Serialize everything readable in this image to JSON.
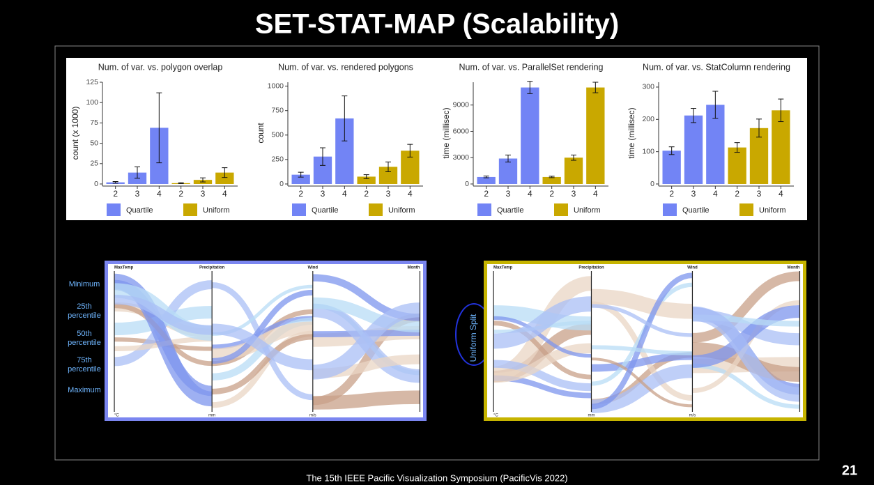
{
  "slide": {
    "title": "SET-STAT-MAP (Scalability)",
    "footer": "The 15th IEEE Pacific Visualization Symposium (PacificVis 2022)",
    "page_number": "21",
    "row_labels": [
      "Minimum",
      "25th percentile",
      "50th percentile",
      "75th percentile",
      "Maximum"
    ],
    "annotation": "Uniform Split",
    "parallel_sets": {
      "axes": [
        "MaxTemp",
        "Precipitation",
        "Wind",
        "Month"
      ],
      "units": [
        "°C",
        "mm",
        "m/s"
      ]
    }
  },
  "chart_data": [
    {
      "type": "bar",
      "title": "Num. of var. vs. polygon overlap",
      "y_label": "count (x 1000)",
      "categories": [
        "2",
        "3",
        "4"
      ],
      "ylim": [
        0,
        125
      ],
      "yticks": [
        0,
        25,
        50,
        75,
        100,
        125
      ],
      "series": [
        {
          "name": "Quartile",
          "color": "#7284f5",
          "values": [
            2,
            14,
            69
          ],
          "errors": [
            1,
            7,
            43
          ]
        },
        {
          "name": "Uniform",
          "color": "#c9a800",
          "values": [
            1,
            5,
            14
          ],
          "errors": [
            0.5,
            2.5,
            6
          ]
        }
      ]
    },
    {
      "type": "bar",
      "title": "Num. of var. vs. rendered polygons",
      "y_label": "count",
      "categories": [
        "2",
        "3",
        "4"
      ],
      "ylim": [
        0,
        1040
      ],
      "yticks": [
        0,
        250,
        500,
        750,
        1000
      ],
      "series": [
        {
          "name": "Quartile",
          "color": "#7284f5",
          "values": [
            95,
            280,
            670
          ],
          "errors": [
            25,
            90,
            230
          ]
        },
        {
          "name": "Uniform",
          "color": "#c9a800",
          "values": [
            75,
            175,
            340
          ],
          "errors": [
            20,
            50,
            65
          ]
        }
      ]
    },
    {
      "type": "bar",
      "title": "Num. of var. vs. ParallelSet rendering",
      "y_label": "time (millisec)",
      "categories": [
        "2",
        "3",
        "4"
      ],
      "ylim": [
        0,
        11600
      ],
      "yticks": [
        0,
        3000,
        6000,
        9000
      ],
      "series": [
        {
          "name": "Quartile",
          "color": "#7284f5",
          "values": [
            800,
            2900,
            11000
          ],
          "errors": [
            100,
            400,
            700
          ]
        },
        {
          "name": "Uniform",
          "color": "#c9a800",
          "values": [
            800,
            3000,
            11000
          ],
          "errors": [
            80,
            300,
            600
          ]
        }
      ]
    },
    {
      "type": "bar",
      "title": "Num. of var. vs. StatColumn rendering",
      "y_label": "time (millisec)",
      "categories": [
        "2",
        "3",
        "4"
      ],
      "ylim": [
        0,
        315
      ],
      "yticks": [
        0,
        100,
        200,
        300
      ],
      "series": [
        {
          "name": "Quartile",
          "color": "#7284f5",
          "values": [
            103,
            212,
            245
          ],
          "errors": [
            12,
            22,
            42
          ]
        },
        {
          "name": "Uniform",
          "color": "#c9a800",
          "values": [
            113,
            173,
            228
          ],
          "errors": [
            15,
            28,
            35
          ]
        }
      ]
    }
  ]
}
